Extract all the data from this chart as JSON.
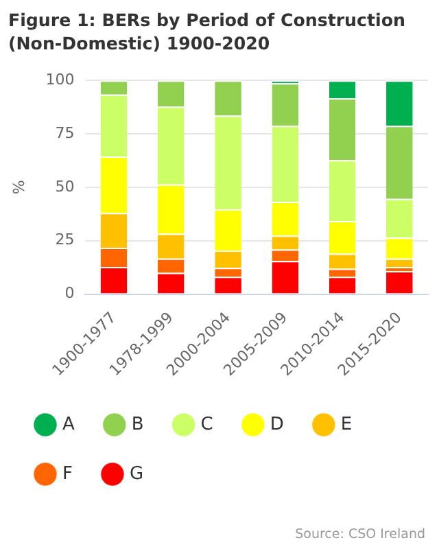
{
  "chart_data": {
    "type": "bar",
    "title": "Figure 1: BERs by Period of Construction (Non-Domestic) 1900-2020",
    "ylabel": "%",
    "categories": [
      "1900-1977",
      "1978-1999",
      "2000-2004",
      "2005-2009",
      "2010-2014",
      "2015-2020"
    ],
    "stacked": true,
    "ylim": [
      0,
      100
    ],
    "yticks": [
      0,
      25,
      50,
      75,
      100
    ],
    "grid": "y",
    "legend": "bottom",
    "series": [
      {
        "name": "G",
        "color": "#ff0000",
        "values": [
          12.7,
          10,
          8.1,
          15.5,
          8.1,
          10.8
        ]
      },
      {
        "name": "F",
        "color": "#ff6600",
        "values": [
          9,
          6.6,
          4.2,
          5.4,
          3.8,
          1.9
        ]
      },
      {
        "name": "E",
        "color": "#ffc000",
        "values": [
          16.3,
          11.7,
          8.1,
          6.5,
          7.1,
          3.9
        ]
      },
      {
        "name": "D",
        "color": "#ffff00",
        "values": [
          26.4,
          23,
          19.3,
          15.8,
          15.2,
          9.8
        ]
      },
      {
        "name": "C",
        "color": "#ccff66",
        "values": [
          29,
          36.5,
          43.8,
          35.6,
          28.5,
          18.2
        ]
      },
      {
        "name": "B",
        "color": "#92d050",
        "values": [
          6.6,
          12.2,
          16.5,
          19.9,
          28.9,
          34.2
        ]
      },
      {
        "name": "A",
        "color": "#00b050",
        "values": [
          0,
          0,
          0,
          1.3,
          8.4,
          21.2
        ]
      }
    ],
    "annotations": [
      "Source: CSO Ireland"
    ]
  }
}
